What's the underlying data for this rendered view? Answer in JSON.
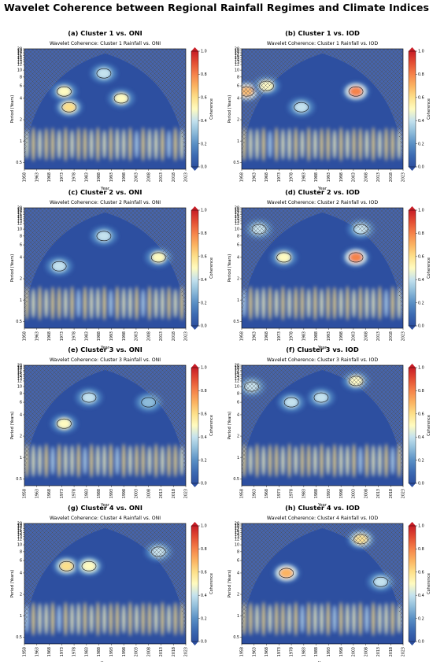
{
  "figure_title": "Wavelet Coherence between Regional Rainfall Regimes and Climate Indices",
  "colorbar": {
    "label": "Coherence",
    "ticks": [
      "0.0",
      "0.2",
      "0.4",
      "0.6",
      "0.8",
      "1.0"
    ],
    "colors": [
      "#2d4fa0",
      "#3c6bb3",
      "#5a90c5",
      "#8ebcda",
      "#c4e2ee",
      "#fffbc0",
      "#fde08a",
      "#fbb361",
      "#f5834a",
      "#e34e33",
      "#c81d26"
    ]
  },
  "chart_data": [
    {
      "type": "heatmap",
      "panel": "a",
      "title": "(a) Cluster 1 vs. ONI",
      "subtitle": "Wavelet Coherence: Cluster 1 Rainfall vs. ONI",
      "xlabel": "Year",
      "ylabel": "Period (Years)",
      "colorbar_label": "Coherence",
      "x_ticks": [
        "1958",
        "1963",
        "1968",
        "1973",
        "1978",
        "1983",
        "1988",
        "1993",
        "1998",
        "2003",
        "2008",
        "2013",
        "2018",
        "2023"
      ],
      "y_ticks": [
        "0.5",
        "1",
        "2",
        "4",
        "6",
        "8",
        "10",
        "12",
        "13",
        "14",
        "15",
        "16",
        "17",
        "18",
        "19",
        "20"
      ],
      "zlim": [
        0,
        1
      ],
      "xlim": [
        1958,
        2023
      ],
      "high_coherence_regions": [
        {
          "year": 1974,
          "period": 5,
          "coherence": 0.45
        },
        {
          "year": 1976,
          "period": 3,
          "coherence": 0.55
        },
        {
          "year": 1990,
          "period": 9,
          "coherence": 0.4
        },
        {
          "year": 1997,
          "period": 4,
          "coherence": 0.45
        }
      ]
    },
    {
      "type": "heatmap",
      "panel": "b",
      "title": "(b) Cluster 1 vs. IOD",
      "subtitle": "Wavelet Coherence: Cluster 1 Rainfall vs. IOD",
      "xlabel": "Year",
      "ylabel": "Period (Years)",
      "colorbar_label": "Coherence",
      "x_ticks": [
        "1958",
        "1963",
        "1968",
        "1973",
        "1978",
        "1983",
        "1988",
        "1993",
        "1998",
        "2003",
        "2008",
        "2013",
        "2018",
        "2023"
      ],
      "y_ticks": [
        "0.5",
        "1",
        "2",
        "4",
        "6",
        "8",
        "10",
        "12",
        "13",
        "14",
        "15",
        "16",
        "17",
        "18",
        "19",
        "20"
      ],
      "zlim": [
        0,
        1
      ],
      "xlim": [
        1958,
        2023
      ],
      "high_coherence_regions": [
        {
          "year": 1960,
          "period": 5,
          "coherence": 0.7
        },
        {
          "year": 1968,
          "period": 6,
          "coherence": 0.45
        },
        {
          "year": 1982,
          "period": 3,
          "coherence": 0.4
        },
        {
          "year": 2004,
          "period": 5,
          "coherence": 0.75
        }
      ]
    },
    {
      "type": "heatmap",
      "panel": "c",
      "title": "(c) Cluster 2 vs. ONI",
      "subtitle": "Wavelet Coherence: Cluster 2 Rainfall vs. ONI",
      "xlabel": "Year",
      "ylabel": "Period (Years)",
      "colorbar_label": "Coherence",
      "x_ticks": [
        "1958",
        "1963",
        "1968",
        "1973",
        "1978",
        "1983",
        "1988",
        "1993",
        "1998",
        "2003",
        "2008",
        "2013",
        "2018",
        "2023"
      ],
      "y_ticks": [
        "0.5",
        "1",
        "2",
        "4",
        "6",
        "8",
        "10",
        "12",
        "13",
        "14",
        "15",
        "16",
        "17",
        "18",
        "19",
        "20"
      ],
      "zlim": [
        0,
        1
      ],
      "xlim": [
        1958,
        2023
      ],
      "high_coherence_regions": [
        {
          "year": 1972,
          "period": 3,
          "coherence": 0.4
        },
        {
          "year": 1990,
          "period": 8,
          "coherence": 0.35
        },
        {
          "year": 2012,
          "period": 4,
          "coherence": 0.45
        }
      ]
    },
    {
      "type": "heatmap",
      "panel": "d",
      "title": "(d) Cluster 2 vs. IOD",
      "subtitle": "Wavelet Coherence: Cluster 2 Rainfall vs. IOD",
      "xlabel": "Year",
      "ylabel": "Period (Years)",
      "colorbar_label": "Coherence",
      "x_ticks": [
        "1958",
        "1963",
        "1968",
        "1973",
        "1978",
        "1983",
        "1988",
        "1993",
        "1998",
        "2003",
        "2008",
        "2013",
        "2018",
        "2023"
      ],
      "y_ticks": [
        "0.5",
        "1",
        "2",
        "4",
        "6",
        "8",
        "10",
        "12",
        "13",
        "14",
        "15",
        "16",
        "17",
        "18",
        "19",
        "20"
      ],
      "zlim": [
        0,
        1
      ],
      "xlim": [
        1958,
        2023
      ],
      "high_coherence_regions": [
        {
          "year": 1965,
          "period": 10,
          "coherence": 0.4
        },
        {
          "year": 1975,
          "period": 4,
          "coherence": 0.45
        },
        {
          "year": 2004,
          "period": 4,
          "coherence": 0.75
        },
        {
          "year": 2006,
          "period": 10,
          "coherence": 0.4
        }
      ]
    },
    {
      "type": "heatmap",
      "panel": "e",
      "title": "(e) Cluster 3 vs. ONI",
      "subtitle": "Wavelet Coherence: Cluster 3 Rainfall vs. ONI",
      "xlabel": "Year",
      "ylabel": "Period (Years)",
      "colorbar_label": "Coherence",
      "x_ticks": [
        "1958",
        "1963",
        "1968",
        "1973",
        "1978",
        "1983",
        "1988",
        "1993",
        "1998",
        "2003",
        "2008",
        "2013",
        "2018",
        "2023"
      ],
      "y_ticks": [
        "0.5",
        "1",
        "2",
        "4",
        "6",
        "8",
        "10",
        "12",
        "13",
        "14",
        "15",
        "16",
        "17",
        "18",
        "19",
        "20"
      ],
      "zlim": [
        0,
        1
      ],
      "xlim": [
        1958,
        2023
      ],
      "high_coherence_regions": [
        {
          "year": 1974,
          "period": 3,
          "coherence": 0.45
        },
        {
          "year": 1984,
          "period": 7,
          "coherence": 0.35
        },
        {
          "year": 2008,
          "period": 6,
          "coherence": 0.3
        }
      ]
    },
    {
      "type": "heatmap",
      "panel": "f",
      "title": "(f) Cluster 3 vs. IOD",
      "subtitle": "Wavelet Coherence: Cluster 3 Rainfall vs. IOD",
      "xlabel": "Year",
      "ylabel": "Period (Years)",
      "colorbar_label": "Coherence",
      "x_ticks": [
        "1958",
        "1963",
        "1968",
        "1973",
        "1978",
        "1983",
        "1988",
        "1993",
        "1998",
        "2003",
        "2008",
        "2013",
        "2018",
        "2023"
      ],
      "y_ticks": [
        "0.5",
        "1",
        "2",
        "4",
        "6",
        "8",
        "10",
        "12",
        "13",
        "14",
        "15",
        "16",
        "17",
        "18",
        "19",
        "20"
      ],
      "zlim": [
        0,
        1
      ],
      "xlim": [
        1958,
        2023
      ],
      "high_coherence_regions": [
        {
          "year": 1962,
          "period": 10,
          "coherence": 0.4
        },
        {
          "year": 1978,
          "period": 6,
          "coherence": 0.4
        },
        {
          "year": 1990,
          "period": 7,
          "coherence": 0.35
        },
        {
          "year": 2004,
          "period": 12,
          "coherence": 0.45
        }
      ]
    },
    {
      "type": "heatmap",
      "panel": "g",
      "title": "(g) Cluster 4 vs. ONI",
      "subtitle": "Wavelet Coherence: Cluster 4 Rainfall vs. ONI",
      "xlabel": "Year",
      "ylabel": "Period (Years)",
      "colorbar_label": "Coherence",
      "x_ticks": [
        "1958",
        "1963",
        "1968",
        "1973",
        "1978",
        "1983",
        "1988",
        "1993",
        "1998",
        "2003",
        "2008",
        "2013",
        "2018",
        "2023"
      ],
      "y_ticks": [
        "0.5",
        "1",
        "2",
        "4",
        "6",
        "8",
        "10",
        "12",
        "13",
        "14",
        "15",
        "16",
        "17",
        "18",
        "19",
        "20"
      ],
      "zlim": [
        0,
        1
      ],
      "xlim": [
        1958,
        2023
      ],
      "high_coherence_regions": [
        {
          "year": 1975,
          "period": 5,
          "coherence": 0.6
        },
        {
          "year": 1984,
          "period": 5,
          "coherence": 0.5
        },
        {
          "year": 2012,
          "period": 8,
          "coherence": 0.4
        }
      ]
    },
    {
      "type": "heatmap",
      "panel": "h",
      "title": "(h) Cluster 4 vs. IOD",
      "subtitle": "Wavelet Coherence: Cluster 4 Rainfall vs. IOD",
      "xlabel": "Year",
      "ylabel": "Period (Years)",
      "colorbar_label": "Coherence",
      "x_ticks": [
        "1958",
        "1963",
        "1968",
        "1973",
        "1978",
        "1983",
        "1988",
        "1993",
        "1998",
        "2003",
        "2008",
        "2013",
        "2018",
        "2023"
      ],
      "y_ticks": [
        "0.5",
        "1",
        "2",
        "4",
        "6",
        "8",
        "10",
        "12",
        "13",
        "14",
        "15",
        "16",
        "17",
        "18",
        "19",
        "20"
      ],
      "zlim": [
        0,
        1
      ],
      "xlim": [
        1958,
        2023
      ],
      "high_coherence_regions": [
        {
          "year": 1976,
          "period": 4,
          "coherence": 0.65
        },
        {
          "year": 2006,
          "period": 12,
          "coherence": 0.6
        },
        {
          "year": 2014,
          "period": 3,
          "coherence": 0.4
        }
      ]
    }
  ]
}
